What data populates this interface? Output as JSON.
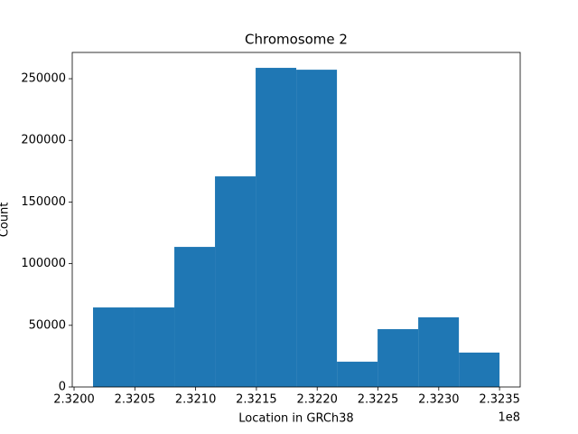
{
  "chart_data": {
    "type": "histogram",
    "title": "Chromosome 2",
    "x_label": "Location in GRCh38",
    "y_label": "Count",
    "x_offset_label": "1e8",
    "bins": [
      232015600,
      232049040,
      232082480,
      232115920,
      232149360,
      232182800,
      232216240,
      232249680,
      232283120,
      232316560,
      232350000
    ],
    "counts": [
      64500,
      64500,
      113600,
      170800,
      258800,
      257300,
      20500,
      46900,
      56500,
      27900
    ],
    "color": "#1f77b4",
    "xlim": [
      231998500,
      232367000
    ],
    "xticks": [
      {
        "value": 232000000,
        "label": "2.3200"
      },
      {
        "value": 232050000,
        "label": "2.3205"
      },
      {
        "value": 232100000,
        "label": "2.3210"
      },
      {
        "value": 232150000,
        "label": "2.3215"
      },
      {
        "value": 232200000,
        "label": "2.3220"
      },
      {
        "value": 232250000,
        "label": "2.3225"
      },
      {
        "value": 232300000,
        "label": "2.3230"
      },
      {
        "value": 232350000,
        "label": "2.3235"
      }
    ],
    "ylim": [
      0,
      271300
    ],
    "yticks": [
      0,
      50000,
      100000,
      150000,
      200000,
      250000
    ]
  }
}
